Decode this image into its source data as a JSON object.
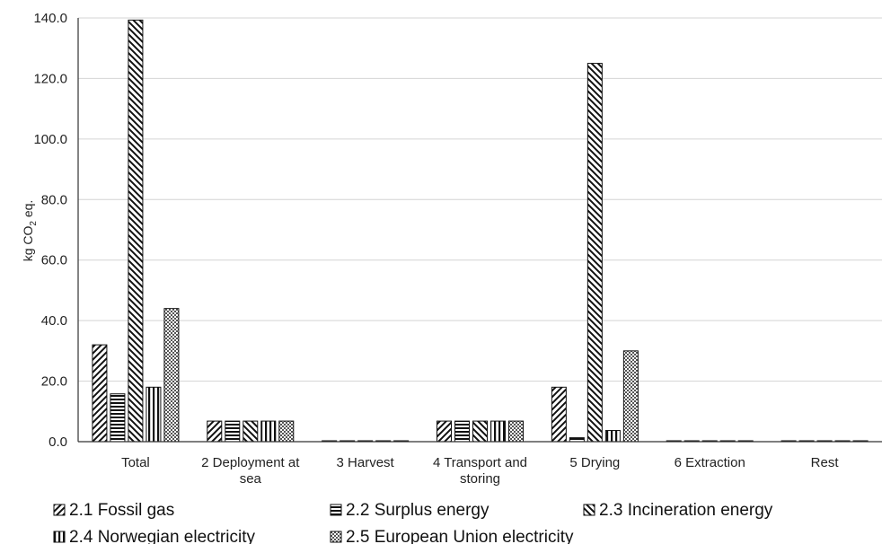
{
  "chart_data": {
    "type": "bar",
    "title": "",
    "ylabel": "kg CO₂ eq.",
    "xlabel": "",
    "ylim": [
      0,
      140
    ],
    "ytick_step": 20,
    "ytick_labels": [
      "0.0",
      "20.0",
      "40.0",
      "60.0",
      "80.0",
      "100.0",
      "120.0",
      "140.0"
    ],
    "grid": true,
    "legend_position": "bottom",
    "categories": [
      [
        "Total"
      ],
      [
        "2 Deployment at",
        "sea"
      ],
      [
        "3 Harvest"
      ],
      [
        "4 Transport and",
        "storing"
      ],
      [
        "5 Drying"
      ],
      [
        "6 Extraction"
      ],
      [
        "Rest"
      ]
    ],
    "series": [
      {
        "name": "2.1 Fossil gas",
        "pattern": "diagonal-up",
        "values": [
          32.0,
          6.8,
          0.3,
          6.8,
          18.0,
          0.3,
          0.3
        ]
      },
      {
        "name": "2.2 Surplus energy",
        "pattern": "horizontal",
        "values": [
          15.8,
          6.8,
          0.3,
          6.8,
          1.3,
          0.3,
          0.3
        ]
      },
      {
        "name": "2.3 Incineration energy",
        "pattern": "diagonal-down",
        "values": [
          139.3,
          6.8,
          0.3,
          6.8,
          125.0,
          0.3,
          0.3
        ]
      },
      {
        "name": "2.4 Norwegian electricity",
        "pattern": "vertical",
        "values": [
          18.0,
          6.8,
          0.3,
          6.8,
          3.7,
          0.3,
          0.3
        ]
      },
      {
        "name": "2.5 European Union electricity",
        "pattern": "crosshatch",
        "values": [
          44.0,
          6.8,
          0.3,
          6.8,
          30.0,
          0.3,
          0.3
        ]
      }
    ]
  }
}
